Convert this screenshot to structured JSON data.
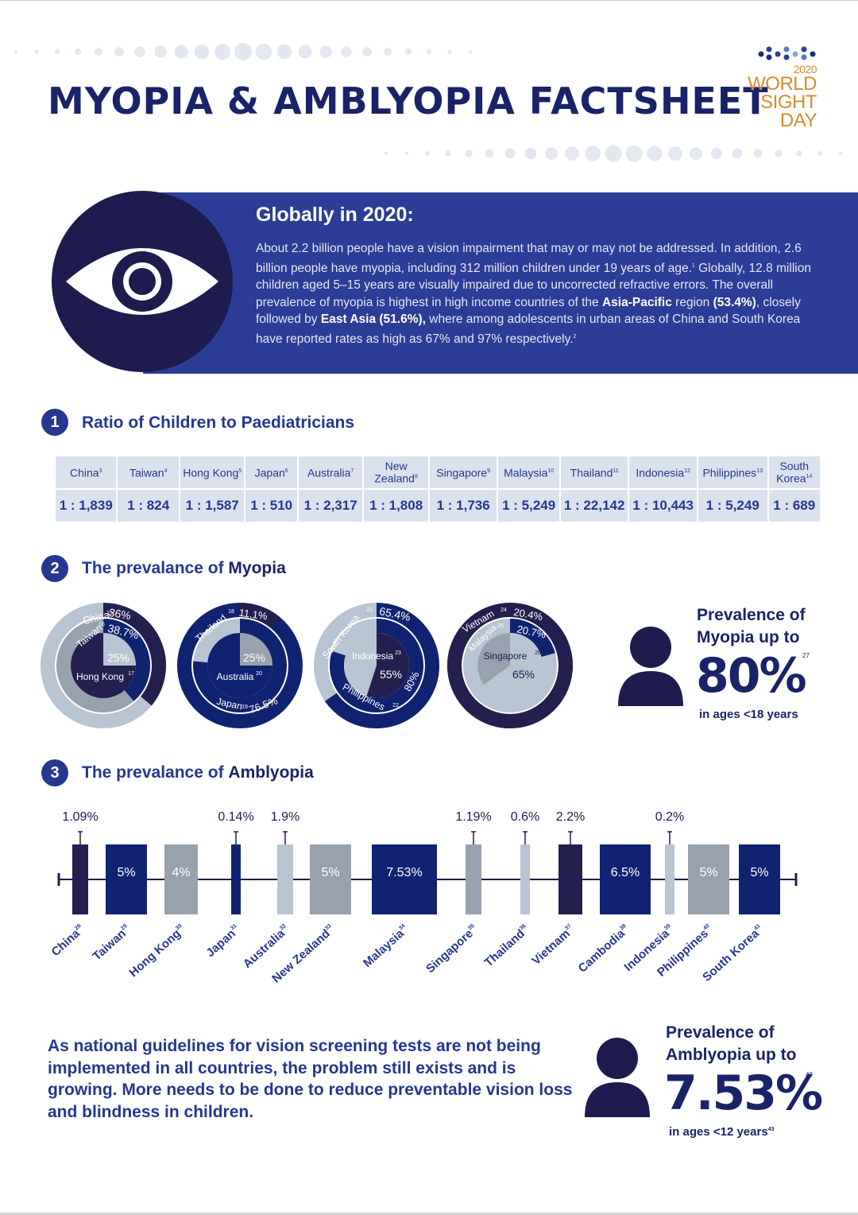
{
  "header": {
    "title": "MYOPIA & AMBLYOPIA FACTSHEET",
    "logo_year": "2020",
    "logo_line1": "WORLD",
    "logo_line2": "SIGHT",
    "logo_line3": "DAY"
  },
  "banner": {
    "heading": "Globally in 2020:",
    "text_1": "About 2.2 billion people have a vision impairment that may or may not be addressed. In addition, 2.6 billion people have myopia, including 312 million children under 19 years of age.",
    "ref_1": "1",
    "text_2": " Globally, 12.8 million children aged 5–15 years are visually impaired due to uncorrected refractive errors.  The overall prevalence of myopia is highest in high income countries of the ",
    "bold_1": "Asia-Pacific",
    "text_3": " region ",
    "bold_2": "(53.4%)",
    "text_4": ", closely followed by ",
    "bold_3": "East Asia (51.6%),",
    "text_5": " where among adolescents in urban areas of China and South Korea have reported rates as high as 67% and 97% respectively.",
    "ref_2": "2"
  },
  "section1": {
    "number": "1",
    "title": "Ratio of Children to Paediatricians",
    "columns": [
      {
        "name": "China",
        "ref": "3",
        "ratio": "1 : 1,839"
      },
      {
        "name": "Taiwan",
        "ref": "4",
        "ratio": "1 : 824"
      },
      {
        "name": "Hong Kong",
        "ref": "5",
        "ratio": "1 : 1,587"
      },
      {
        "name": "Japan",
        "ref": "6",
        "ratio": "1 : 510"
      },
      {
        "name": "Australia",
        "ref": "7",
        "ratio": "1 : 2,317"
      },
      {
        "name": "New Zealand",
        "ref": "8",
        "ratio": "1 : 1,808"
      },
      {
        "name": "Singapore",
        "ref": "9",
        "ratio": "1 : 1,736"
      },
      {
        "name": "Malaysia",
        "ref": "10",
        "ratio": "1 : 5,249"
      },
      {
        "name": "Thailand",
        "ref": "11",
        "ratio": "1 : 22,142"
      },
      {
        "name": "Indonesia",
        "ref": "12",
        "ratio": "1 : 10,443"
      },
      {
        "name": "Philippines",
        "ref": "13",
        "ratio": "1 : 5,249"
      },
      {
        "name": "South Korea",
        "ref": "14",
        "ratio": "1 : 689"
      }
    ]
  },
  "section2": {
    "number": "2",
    "title_pre": "The prevalance of ",
    "title_bold": "Myopia",
    "stat_label_1": "Prevalence of",
    "stat_label_2": "Myopia up to",
    "stat_value": "80%",
    "stat_ref": "27",
    "stat_sub": "in ages <18 years"
  },
  "section3": {
    "number": "3",
    "title_pre": "The prevalance of ",
    "title_bold": "Amblyopia",
    "stat_label_1": "Prevalence of",
    "stat_label_2": "Amblyopia up to",
    "stat_value": "7.53%",
    "stat_ref": "42",
    "stat_sub": "in ages <12 years",
    "stat_sub_ref": "43"
  },
  "closing": "As national guidelines for vision screening tests are not being implemented in all countries, the problem still exists and is growing. More needs to be done to reduce preventable vision loss and blindness in children.",
  "chart_data": [
    {
      "type": "pie",
      "title": "The prevalance of Myopia",
      "series": [
        {
          "name": "China",
          "ref": "15",
          "value": 36,
          "label": "36%"
        },
        {
          "name": "Taiwan",
          "ref": "16",
          "value": 38.7,
          "label": "38.7%"
        },
        {
          "name": "Hong Kong",
          "ref": "17",
          "value": 25,
          "label": "25%"
        },
        {
          "name": "Thailand",
          "ref": "18",
          "value": 11.1,
          "label": "11.1%"
        },
        {
          "name": "Japan",
          "ref": "19",
          "value": 76.5,
          "label": "76.5%"
        },
        {
          "name": "Australia",
          "ref": "20",
          "value": 25,
          "label": "25%"
        },
        {
          "name": "South Korea",
          "ref": "21",
          "value": 65.4,
          "label": "65.4%"
        },
        {
          "name": "Philippines",
          "ref": "22",
          "value": 80,
          "label": "80%"
        },
        {
          "name": "Indonesia",
          "ref": "23",
          "value": 55,
          "label": "55%"
        },
        {
          "name": "Vietnam",
          "ref": "24",
          "value": 20.4,
          "label": "20.4%"
        },
        {
          "name": "Malaysia",
          "ref": "25",
          "value": 20.7,
          "label": "20.7%"
        },
        {
          "name": "Singapore",
          "ref": "26",
          "value": 65,
          "label": "65%"
        }
      ]
    },
    {
      "type": "bar",
      "title": "The prevalance of Amblyopia",
      "categories": [
        "China",
        "Taiwan",
        "Hong Kong",
        "Japan",
        "Australia",
        "New Zealand",
        "Malaysia",
        "Singapore",
        "Thailand",
        "Vietnam",
        "Cambodia",
        "Indonesia",
        "Philippines",
        "South Korea"
      ],
      "refs": [
        "28",
        "29",
        "30",
        "31",
        "32",
        "33",
        "34",
        "35",
        "36",
        "37",
        "38",
        "39",
        "40",
        "41"
      ],
      "values": [
        1.09,
        5,
        4,
        0.14,
        1.9,
        5,
        7.53,
        1.19,
        0.6,
        2.2,
        6.5,
        0.2,
        5,
        5
      ],
      "labels": [
        "1.09%",
        "5%",
        "4%",
        "0.14%",
        "1.9%",
        "5%",
        "7.53%",
        "1.19%",
        "0.6%",
        "2.2%",
        "6.5%",
        "0.2%",
        "5%",
        "5%"
      ]
    }
  ]
}
